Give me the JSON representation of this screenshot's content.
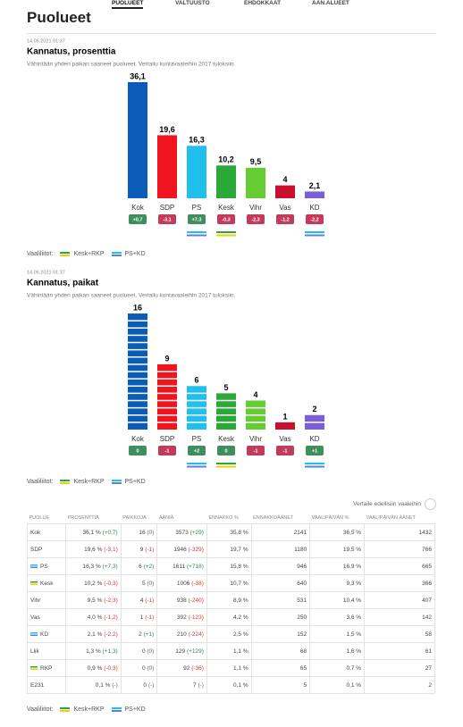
{
  "nav": [
    "PUOLUEET",
    "VALTUUSTO",
    "EHDOKKAAT",
    "ÄÄN.ALUEET"
  ],
  "page_title": "Puolueet",
  "alliances_label": "Vaaliliitot:",
  "alliances": [
    {
      "name": "Kesk+RKP",
      "colors": [
        "#2aa838",
        "#e8d300"
      ],
      "members": [
        "Kesk",
        "RKP"
      ]
    },
    {
      "name": "PS+KD",
      "colors": [
        "#1fc0ec",
        "#5b7fe0"
      ],
      "members": [
        "PS",
        "KD"
      ]
    }
  ],
  "chart_data": [
    {
      "type": "bar",
      "timestamp": "14.06.2021 01:37",
      "title": "Kannatus, prosenttia",
      "subtitle": "Vähintään yhden paikan saaneet puolueet. Vertailu kuntavaaleihin 2017 tuloksiin.",
      "categories": [
        "Kok",
        "SDP",
        "PS",
        "Kesk",
        "Vihr",
        "Vas",
        "KD"
      ],
      "colors": [
        "#0a5cb8",
        "#f0141e",
        "#1fc0ec",
        "#2aa838",
        "#66cc33",
        "#c8102e",
        "#7b5fd6"
      ],
      "values": [
        36.1,
        19.6,
        16.3,
        10.2,
        9.5,
        4,
        2.1
      ],
      "value_labels": [
        "36,1",
        "19,6",
        "16,3",
        "10,2",
        "9,5",
        "4",
        "2,1"
      ],
      "changes": [
        0.7,
        -3.1,
        7.3,
        -0.3,
        -2.3,
        -1.2,
        -2.2
      ],
      "change_labels": [
        "+0,7",
        "-3,1",
        "+7,3",
        "-0,3",
        "-2,3",
        "-1,2",
        "-2,2"
      ],
      "segmented": false
    },
    {
      "type": "bar",
      "timestamp": "14.06.2021 01:37",
      "title": "Kannatus, paikat",
      "subtitle": "Vähintään yhden paikan saaneet puolueet. Vertailu kuntavaaleihin 2017 tuloksiin.",
      "categories": [
        "Kok",
        "SDP",
        "PS",
        "Kesk",
        "Vihr",
        "Vas",
        "KD"
      ],
      "colors": [
        "#0a5cb8",
        "#f0141e",
        "#1fc0ec",
        "#2aa838",
        "#66cc33",
        "#c8102e",
        "#7b5fd6"
      ],
      "values": [
        16,
        9,
        6,
        5,
        4,
        1,
        2
      ],
      "changes": [
        0,
        -1,
        2,
        0,
        -1,
        -1,
        1
      ],
      "change_labels": [
        "0",
        "-1",
        "+2",
        "0",
        "-1",
        "-1",
        "+1"
      ],
      "segmented": true
    }
  ],
  "toggle": "Vertaile edellisiin vaaleihin",
  "table": {
    "header": [
      "PUOLUE",
      "PROSENTTIA",
      "PAIKKOJA",
      "ÄÄNIÄ",
      "ENNAKKO %",
      "ENNAKKOÄÄNET",
      "VAALIPÄIVÄN %",
      "VAALIPÄIVÄN ÄÄNET"
    ],
    "rows": [
      [
        "Kok",
        {
          "text": "36,1 %",
          "change": "(+0,7)"
        },
        {
          "text": "16",
          "change": "(0)"
        },
        {
          "text": "3573",
          "change": "(+29)"
        },
        "35,8 %",
        "2141",
        "36,5 %",
        "1432"
      ],
      [
        "SDP",
        {
          "text": "19,6 %",
          "change": "(-3,1)"
        },
        {
          "text": "9",
          "change": "(-1)"
        },
        {
          "text": "1946",
          "change": "(-329)"
        },
        "19,7 %",
        "1180",
        "19,5 %",
        "766"
      ],
      [
        "PS",
        {
          "text": "16,3 %",
          "change": "(+7,3)"
        },
        {
          "text": "6",
          "change": "(+2)"
        },
        {
          "text": "1611",
          "change": "(+718)"
        },
        "15,8 %",
        "946",
        "16,9 %",
        "665"
      ],
      [
        "Kesk",
        {
          "text": "10,2 %",
          "change": "(-0,3)"
        },
        {
          "text": "5",
          "change": "(0)"
        },
        {
          "text": "1006",
          "change": "(-38)"
        },
        "10,7 %",
        "640",
        "9,3 %",
        "366"
      ],
      [
        "Vihr",
        {
          "text": "9,5 %",
          "change": "(-2,3)"
        },
        {
          "text": "4",
          "change": "(-1)"
        },
        {
          "text": "938",
          "change": "(-240)"
        },
        "8,9 %",
        "531",
        "10,4 %",
        "407"
      ],
      [
        "Vas",
        {
          "text": "4,0 %",
          "change": "(-1,2)"
        },
        {
          "text": "1",
          "change": "(-1)"
        },
        {
          "text": "392",
          "change": "(-123)"
        },
        "4,2 %",
        "250",
        "3,6 %",
        "142"
      ],
      [
        "KD",
        {
          "text": "2,1 %",
          "change": "(-2,2)"
        },
        {
          "text": "2",
          "change": "(+1)"
        },
        {
          "text": "210",
          "change": "(-224)"
        },
        "2,5 %",
        "152",
        "1,5 %",
        "58"
      ],
      [
        "Liik",
        {
          "text": "1,3 %",
          "change": "(+1,3)"
        },
        {
          "text": "0",
          "change": "(0)"
        },
        {
          "text": "129",
          "change": "(+129)"
        },
        "1,1 %",
        "68",
        "1,6 %",
        "61"
      ],
      [
        "RKP",
        {
          "text": "0,9 %",
          "change": "(-0,3)"
        },
        {
          "text": "0",
          "change": "(0)"
        },
        {
          "text": "92",
          "change": "(-36)"
        },
        "1,1 %",
        "65",
        "0,7 %",
        "27"
      ],
      [
        "E231",
        {
          "text": "0,1 %",
          "change": "(-)"
        },
        {
          "text": "0",
          "change": "(-)"
        },
        {
          "text": "7",
          "change": "(-)"
        },
        "0,1 %",
        "5",
        "0,1 %",
        "2"
      ]
    ]
  }
}
